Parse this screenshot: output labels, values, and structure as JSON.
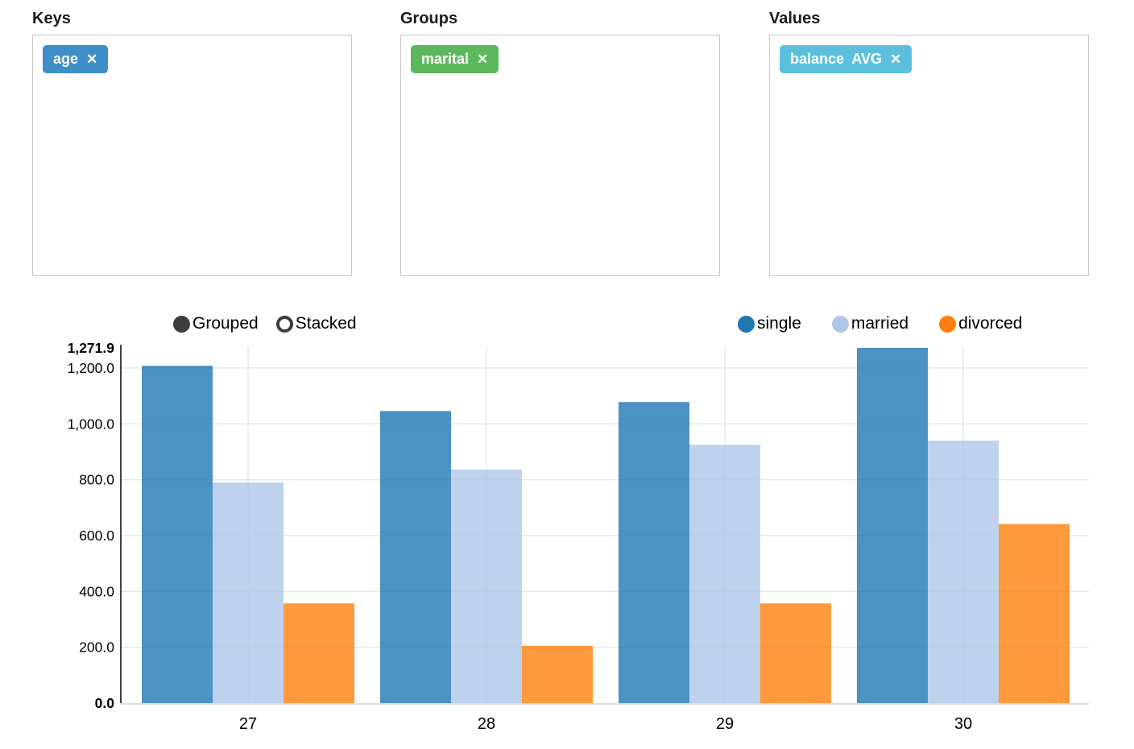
{
  "panels": [
    {
      "label": "Keys",
      "tags": [
        {
          "text": "age",
          "color": "#3e8ec7"
        }
      ]
    },
    {
      "label": "Groups",
      "tags": [
        {
          "text": "marital",
          "color": "#5cb85c"
        }
      ]
    },
    {
      "label": "Values",
      "tags": [
        {
          "text": "balance  AVG",
          "color": "#5bc0de"
        }
      ]
    }
  ],
  "icons": {
    "remove": "✕"
  },
  "controls": {
    "grouped_label": "Grouped",
    "stacked_label": "Stacked",
    "selected": "Grouped"
  },
  "chart_data": {
    "type": "bar",
    "mode": "grouped",
    "categories": [
      "27",
      "28",
      "29",
      "30"
    ],
    "series": [
      {
        "name": "single",
        "color": "#1f77b4",
        "values": [
          1208,
          1046,
          1078,
          1271.9
        ]
      },
      {
        "name": "married",
        "color": "#aec7e8",
        "values": [
          790,
          836,
          925,
          940
        ]
      },
      {
        "name": "divorced",
        "color": "#ff7f0e",
        "values": [
          357,
          205,
          357,
          641
        ]
      }
    ],
    "ylim": [
      0,
      1271.9
    ],
    "yticks": [
      0,
      200,
      400,
      600,
      800,
      1000,
      1200
    ],
    "ymax_label": "1,271.9",
    "ymin_label": "0.0",
    "grid": true,
    "bar_opacity": 0.8,
    "legend_position": "top-right",
    "axis_color": "#404040",
    "grid_color": "#e7e7e7",
    "bottom_axis_color": "#dcdcdc"
  }
}
